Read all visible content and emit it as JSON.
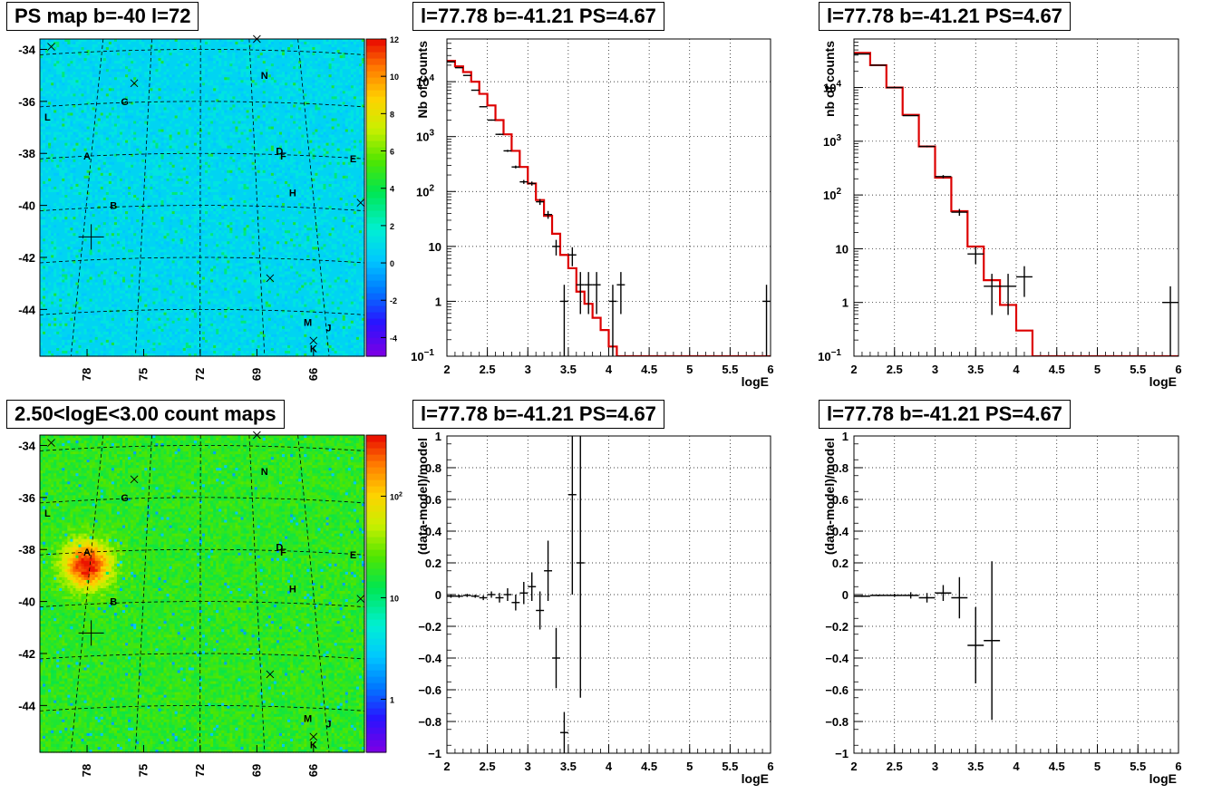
{
  "chart_data": [
    {
      "type": "heatmap",
      "title": "PS map b=-40 l=72",
      "x_ticks": [
        "78",
        "75",
        "72",
        "69",
        "66"
      ],
      "y_ticks": [
        "-34",
        "-36",
        "-38",
        "-40",
        "-42",
        "-44"
      ],
      "xlim": [
        80.5,
        63.3
      ],
      "ylim": [
        -45.8,
        -33.6
      ],
      "colorbar": {
        "min": -5,
        "max": 12,
        "ticks": [
          "-4",
          "-2",
          "0",
          "2",
          "4",
          "6",
          "8",
          "10",
          "12"
        ]
      },
      "annotations": [
        {
          "label": "N",
          "x": 68.6,
          "y": -35.0
        },
        {
          "label": "G",
          "x": 76.0,
          "y": -36.0
        },
        {
          "label": "L",
          "x": 80.1,
          "y": -36.6
        },
        {
          "label": "A",
          "x": 78.0,
          "y": -38.1
        },
        {
          "label": "D",
          "x": 67.8,
          "y": -37.9
        },
        {
          "label": "F",
          "x": 67.6,
          "y": -38.1
        },
        {
          "label": "E",
          "x": 63.9,
          "y": -38.2
        },
        {
          "label": "H",
          "x": 67.1,
          "y": -39.5
        },
        {
          "label": "B",
          "x": 76.6,
          "y": -40.0
        },
        {
          "label": "M",
          "x": 66.3,
          "y": -44.5
        },
        {
          "label": "J",
          "x": 65.2,
          "y": -44.7
        },
        {
          "label": "K",
          "x": 66.0,
          "y": -45.5
        }
      ]
    },
    {
      "type": "line",
      "title": "l=77.78 b=-41.21 PS=4.67",
      "xlabel": "logE",
      "ylabel": "Nb of counts",
      "xlim": [
        2,
        6
      ],
      "ylim": [
        0.1,
        60000
      ],
      "yscale": "log",
      "x_ticks": [
        "2",
        "2.5",
        "3",
        "3.5",
        "4",
        "4.5",
        "5",
        "5.5",
        "6"
      ],
      "y_ticks": [
        "10",
        "1",
        "10^-1"
      ],
      "grid": true,
      "series": [
        {
          "style": "data-points",
          "x": [
            2.05,
            2.15,
            2.25,
            2.35,
            2.45,
            2.55,
            2.65,
            2.75,
            2.85,
            2.95,
            3.05,
            3.15,
            3.25,
            3.35,
            3.45,
            3.55,
            3.65,
            3.75,
            3.85,
            4.05,
            4.15,
            5.95
          ],
          "y": [
            23000,
            18000,
            13000,
            7000,
            3500,
            2000,
            1100,
            550,
            280,
            150,
            140,
            65,
            38,
            10,
            1,
            7,
            2,
            2,
            2,
            1,
            2,
            1
          ],
          "xerr": 0.05
        },
        {
          "style": "step",
          "color": "#dd0000",
          "edges": [
            2.0,
            2.1,
            2.2,
            2.3,
            2.4,
            2.5,
            2.6,
            2.7,
            2.8,
            2.9,
            3.0,
            3.1,
            3.2,
            3.3,
            3.4,
            3.5,
            3.6,
            3.7,
            3.8,
            3.9,
            4.0,
            4.1,
            4.2,
            6.0
          ],
          "values": [
            24000,
            19000,
            15000,
            10000,
            6000,
            3700,
            2000,
            1100,
            550,
            280,
            140,
            70,
            36,
            17,
            7,
            4,
            1.5,
            0.9,
            0.5,
            0.3,
            0.15,
            0.1,
            0.1
          ]
        }
      ]
    },
    {
      "type": "line",
      "title": "l=77.78 b=-41.21 PS=4.67",
      "xlabel": "logE",
      "ylabel": "nb of counts",
      "xlim": [
        2,
        6
      ],
      "ylim": [
        0.1,
        80000
      ],
      "yscale": "log",
      "x_ticks": [
        "2",
        "2.5",
        "3",
        "3.5",
        "4",
        "4.5",
        "5",
        "5.5",
        "6"
      ],
      "y_ticks": [
        "10",
        "1",
        "10^-1"
      ],
      "grid": true,
      "series": [
        {
          "style": "data-points",
          "x": [
            2.1,
            2.3,
            2.5,
            2.7,
            2.9,
            3.1,
            3.3,
            3.5,
            3.7,
            3.9,
            4.1,
            5.9
          ],
          "y": [
            42000,
            26000,
            10000,
            3000,
            800,
            220,
            48,
            8,
            2,
            2,
            3,
            1
          ],
          "xerr": 0.1
        },
        {
          "style": "step",
          "color": "#dd0000",
          "edges": [
            2.0,
            2.2,
            2.4,
            2.6,
            2.8,
            3.0,
            3.2,
            3.4,
            3.6,
            3.8,
            4.0,
            4.2,
            6.0
          ],
          "values": [
            44000,
            26000,
            10000,
            3100,
            800,
            210,
            50,
            11,
            2.6,
            0.9,
            0.3,
            0.1
          ]
        }
      ]
    },
    {
      "type": "heatmap",
      "title": "2.50<logE<3.00 count maps",
      "x_ticks": [
        "78",
        "75",
        "72",
        "69",
        "66"
      ],
      "y_ticks": [
        "-34",
        "-36",
        "-38",
        "-40",
        "-42",
        "-44"
      ],
      "xlim": [
        80.5,
        63.3
      ],
      "ylim": [
        -45.8,
        -33.6
      ],
      "colorscale": "log",
      "colorbar": {
        "min": 0.3,
        "max": 400,
        "ticks": [
          "1",
          "10",
          "10^2"
        ]
      },
      "hotspot": {
        "x": 78.0,
        "y": -38.6
      },
      "annotations": [
        {
          "label": "N",
          "x": 68.6,
          "y": -35.0
        },
        {
          "label": "G",
          "x": 76.0,
          "y": -36.0
        },
        {
          "label": "L",
          "x": 80.1,
          "y": -36.6
        },
        {
          "label": "A",
          "x": 78.0,
          "y": -38.1
        },
        {
          "label": "D",
          "x": 67.8,
          "y": -37.9
        },
        {
          "label": "F",
          "x": 67.6,
          "y": -38.1
        },
        {
          "label": "E",
          "x": 63.9,
          "y": -38.2
        },
        {
          "label": "H",
          "x": 67.1,
          "y": -39.5
        },
        {
          "label": "B",
          "x": 76.6,
          "y": -40.0
        },
        {
          "label": "M",
          "x": 66.3,
          "y": -44.5
        },
        {
          "label": "J",
          "x": 65.2,
          "y": -44.7
        },
        {
          "label": "K",
          "x": 66.0,
          "y": -45.5
        }
      ]
    },
    {
      "type": "scatter",
      "title": "l=77.78 b=-41.21 PS=4.67",
      "xlabel": "logE",
      "ylabel": "(data-model)/model",
      "xlim": [
        2,
        6
      ],
      "ylim": [
        -1,
        1
      ],
      "x_ticks": [
        "2",
        "2.5",
        "3",
        "3.5",
        "4",
        "4.5",
        "5",
        "5.5",
        "6"
      ],
      "y_ticks": [
        "1",
        "0.8",
        "0.6",
        "0.4",
        "0.2",
        "0",
        "−0.2",
        "−0.4",
        "−0.6",
        "−0.8",
        "−1"
      ],
      "grid": true,
      "series": [
        {
          "x": [
            2.05,
            2.15,
            2.25,
            2.35,
            2.45,
            2.55,
            2.65,
            2.75,
            2.85,
            2.95,
            3.05,
            3.15,
            3.25,
            3.35,
            3.45,
            3.55,
            3.65
          ],
          "y": [
            -0.01,
            -0.01,
            -0.005,
            -0.01,
            -0.02,
            0.0,
            -0.02,
            0.0,
            -0.05,
            0.01,
            0.05,
            -0.1,
            0.15,
            -0.4,
            -0.87,
            0.63,
            0.2
          ],
          "yerr": [
            0.01,
            0.01,
            0.01,
            0.01,
            0.015,
            0.02,
            0.03,
            0.04,
            0.05,
            0.07,
            0.09,
            0.12,
            0.19,
            0.19,
            0.13,
            0.63,
            0.85
          ],
          "xerr": 0.05
        }
      ]
    },
    {
      "type": "scatter",
      "title": "l=77.78 b=-41.21 PS=4.67",
      "xlabel": "logE",
      "ylabel": "(data-model)/model",
      "xlim": [
        2,
        6
      ],
      "ylim": [
        -1,
        1
      ],
      "x_ticks": [
        "2",
        "2.5",
        "3",
        "3.5",
        "4",
        "4.5",
        "5",
        "5.5",
        "6"
      ],
      "y_ticks": [
        "1",
        "0.8",
        "0.6",
        "0.4",
        "0.2",
        "0",
        "−0.2",
        "−0.4",
        "−0.6",
        "−0.8",
        "−1"
      ],
      "grid": true,
      "series": [
        {
          "x": [
            2.1,
            2.3,
            2.5,
            2.7,
            2.9,
            3.1,
            3.3,
            3.5,
            3.7
          ],
          "y": [
            -0.01,
            -0.005,
            -0.005,
            -0.005,
            -0.02,
            0.01,
            -0.02,
            -0.32,
            -0.29
          ],
          "yerr": [
            0.005,
            0.005,
            0.01,
            0.02,
            0.03,
            0.05,
            0.13,
            0.24,
            0.5
          ],
          "xerr": 0.1
        }
      ]
    }
  ]
}
